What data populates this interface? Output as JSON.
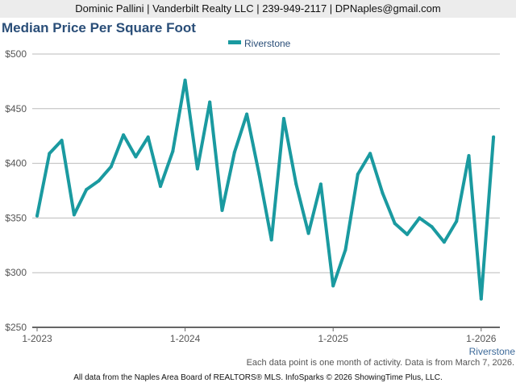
{
  "header": {
    "contact": "Dominic Pallini | Vanderbilt Realty LLC | 239-949-2117 | DPNaples@gmail.com"
  },
  "note": "Each data point is one month of activity. Data is from March 7, 2026.",
  "footer": "All data from the Naples Area Board of REALTORS® MLS. InfoSparks © 2026 ShowingTime Plus, LLC.",
  "chart_data": {
    "type": "line",
    "title": "Median Price Per Square Foot",
    "xlabel": "",
    "ylabel": "",
    "ylim": [
      250,
      500
    ],
    "yticks": [
      500,
      450,
      400,
      350,
      300,
      250
    ],
    "ytick_labels": [
      "$500",
      "$450",
      "$400",
      "$350",
      "$300",
      "$250"
    ],
    "xtick_labels": [
      "1-2023",
      "1-2024",
      "1-2025",
      "1-2026"
    ],
    "xtick_indices": [
      0,
      12,
      24,
      36
    ],
    "series_label": "Riverstone",
    "legend": "top-center",
    "grid": true,
    "color": "#1a9aa0",
    "x": [
      "1-2023",
      "2-2023",
      "3-2023",
      "4-2023",
      "5-2023",
      "6-2023",
      "7-2023",
      "8-2023",
      "9-2023",
      "10-2023",
      "11-2023",
      "12-2023",
      "1-2024",
      "2-2024",
      "3-2024",
      "4-2024",
      "5-2024",
      "6-2024",
      "7-2024",
      "8-2024",
      "9-2024",
      "10-2024",
      "11-2024",
      "12-2024",
      "1-2025",
      "2-2025",
      "3-2025",
      "4-2025",
      "5-2025",
      "6-2025",
      "7-2025",
      "8-2025",
      "9-2025",
      "10-2025",
      "11-2025",
      "12-2025",
      "1-2026",
      "2-2026"
    ],
    "series": [
      {
        "name": "Riverstone",
        "values": [
          352,
          409,
          421,
          353,
          376,
          384,
          397,
          426,
          406,
          424,
          379,
          411,
          476,
          395,
          456,
          357,
          410,
          445,
          390,
          330,
          441,
          381,
          336,
          381,
          288,
          321,
          390,
          409,
          373,
          345,
          335,
          350,
          342,
          328,
          347,
          407,
          276,
          424
        ]
      }
    ]
  }
}
